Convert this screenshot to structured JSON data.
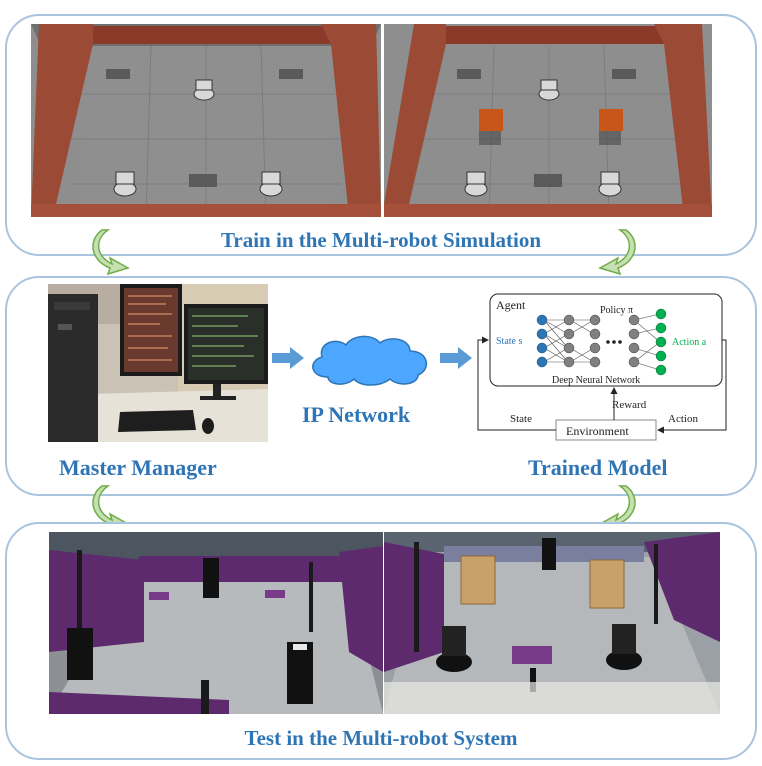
{
  "top_panel": {
    "caption": "Train in the Multi-robot Simulation"
  },
  "middle_panel": {
    "master_label": "Master Manager",
    "network_label": "IP Network",
    "trained_label": "Trained Model",
    "diagram": {
      "agent": "Agent",
      "policy": "Policy π",
      "state_s": "State s",
      "action_a": "Action a",
      "dnn": "Deep Neural Network",
      "reward": "Reward",
      "state": "State",
      "action": "Action",
      "environment": "Environment"
    }
  },
  "bottom_panel": {
    "caption": "Test in the Multi-robot System"
  },
  "colors": {
    "panel_border": "#a9c4df",
    "caption": "#2e75b6",
    "arrow_fill": "#c6e0b4",
    "arrow_stroke": "#70ad47",
    "flow_arrow": "#5b9bd5",
    "cloud": "#4da6ff",
    "input_node": "#2e75b6",
    "output_node": "#00b050",
    "hidden_node": "#808080"
  }
}
